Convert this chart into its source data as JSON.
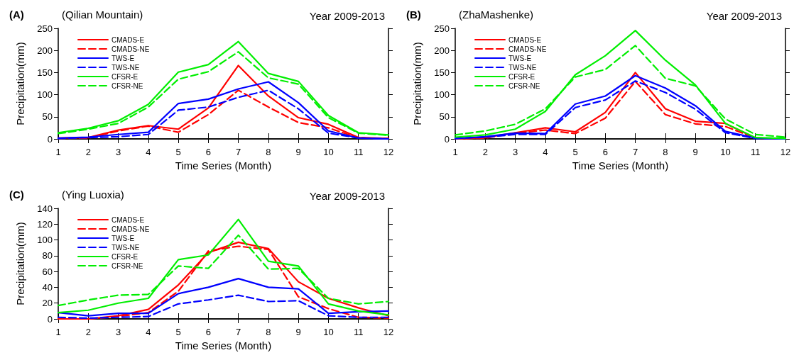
{
  "chart_data": [
    {
      "type": "line",
      "title": "(A)",
      "subtitle": "(Qilian Mountain)",
      "annotations": [
        "Year 2009-2013"
      ],
      "xlabel": "Time Series (Month)",
      "ylabel": "Precipitation(mm)",
      "x": [
        1,
        2,
        3,
        4,
        5,
        6,
        7,
        8,
        9,
        10,
        11,
        12
      ],
      "xlim": [
        1,
        12
      ],
      "xticks": [
        1,
        2,
        3,
        4,
        5,
        6,
        7,
        8,
        9,
        10,
        11,
        12
      ],
      "ylim": [
        0,
        250
      ],
      "yticks": [
        0,
        50,
        100,
        150,
        200,
        250
      ],
      "legend": "top left",
      "grid": false,
      "marker": "none",
      "series": [
        {
          "name": "CMADS-E",
          "color": "#ff0000",
          "line_style": "solid",
          "values": [
            2,
            3,
            20,
            30,
            22,
            70,
            166,
            97,
            48,
            33,
            3,
            1
          ]
        },
        {
          "name": "CMADS-NE",
          "color": "#ff0000",
          "line_style": "dashed",
          "values": [
            1,
            2,
            18,
            29,
            15,
            55,
            110,
            72,
            37,
            25,
            2,
            1
          ]
        },
        {
          "name": "TWS-E",
          "color": "#0000ff",
          "line_style": "solid",
          "values": [
            2,
            4,
            10,
            15,
            80,
            90,
            113,
            129,
            82,
            18,
            2,
            0
          ]
        },
        {
          "name": "TWS-NE",
          "color": "#0000ff",
          "line_style": "dashed",
          "values": [
            1,
            3,
            5,
            10,
            65,
            72,
            94,
            110,
            68,
            13,
            2,
            0
          ]
        },
        {
          "name": "CFSR-E",
          "color": "#00ee00",
          "line_style": "solid",
          "values": [
            14,
            24,
            41,
            78,
            151,
            168,
            220,
            148,
            130,
            53,
            14,
            9
          ]
        },
        {
          "name": "CFSR-NE",
          "color": "#00ee00",
          "line_style": "dashed",
          "values": [
            12,
            22,
            35,
            72,
            135,
            152,
            197,
            138,
            124,
            48,
            13,
            8
          ]
        }
      ]
    },
    {
      "type": "line",
      "title": "(B)",
      "subtitle": "(ZhaMashenke)",
      "annotations": [
        "Year 2009-2013"
      ],
      "xlabel": "Time Series (Month)",
      "ylabel": "Precipitation(mm)",
      "x": [
        1,
        2,
        3,
        4,
        5,
        6,
        7,
        8,
        9,
        10,
        11,
        12
      ],
      "xlim": [
        1,
        12
      ],
      "xticks": [
        1,
        2,
        3,
        4,
        5,
        6,
        7,
        8,
        9,
        10,
        11,
        12
      ],
      "ylim": [
        0,
        250
      ],
      "yticks": [
        0,
        50,
        100,
        150,
        200,
        250
      ],
      "legend": "top left",
      "grid": false,
      "marker": "none",
      "series": [
        {
          "name": "CMADS-E",
          "color": "#ff0000",
          "line_style": "solid",
          "values": [
            0,
            3,
            14,
            25,
            16,
            60,
            150,
            68,
            40,
            35,
            2,
            0
          ]
        },
        {
          "name": "CMADS-NE",
          "color": "#ff0000",
          "line_style": "dashed",
          "values": [
            0,
            2,
            13,
            20,
            12,
            47,
            130,
            55,
            34,
            28,
            2,
            0
          ]
        },
        {
          "name": "TWS-E",
          "color": "#0000ff",
          "line_style": "solid",
          "values": [
            1,
            5,
            13,
            12,
            79,
            97,
            143,
            115,
            75,
            17,
            2,
            0
          ]
        },
        {
          "name": "TWS-NE",
          "color": "#0000ff",
          "line_style": "dashed",
          "values": [
            1,
            4,
            10,
            10,
            71,
            88,
            131,
            105,
            67,
            14,
            1,
            0
          ]
        },
        {
          "name": "CFSR-E",
          "color": "#00ee00",
          "line_style": "solid",
          "values": [
            4,
            9,
            22,
            62,
            145,
            188,
            245,
            178,
            122,
            35,
            3,
            1
          ]
        },
        {
          "name": "CFSR-NE",
          "color": "#00ee00",
          "line_style": "dashed",
          "values": [
            9,
            18,
            33,
            68,
            140,
            157,
            211,
            137,
            120,
            45,
            10,
            4
          ]
        }
      ]
    },
    {
      "type": "line",
      "title": "(C)",
      "subtitle": "(Ying Luoxia)",
      "annotations": [
        "Year 2009-2013"
      ],
      "xlabel": "Time Series (Month)",
      "ylabel": "Precipitation(mm)",
      "x": [
        1,
        2,
        3,
        4,
        5,
        6,
        7,
        8,
        9,
        10,
        11,
        12
      ],
      "xlim": [
        1,
        12
      ],
      "xticks": [
        1,
        2,
        3,
        4,
        5,
        6,
        7,
        8,
        9,
        10,
        11,
        12
      ],
      "ylim": [
        0,
        140
      ],
      "yticks": [
        0,
        20,
        40,
        60,
        80,
        100,
        120,
        140
      ],
      "legend": "top left",
      "grid": false,
      "marker": "none",
      "series": [
        {
          "name": "CMADS-E",
          "color": "#ff0000",
          "line_style": "solid",
          "values": [
            0,
            0,
            4,
            12,
            43,
            84,
            97,
            89,
            47,
            26,
            14,
            4
          ]
        },
        {
          "name": "CMADS-NE",
          "color": "#ff0000",
          "line_style": "dashed",
          "values": [
            0,
            0,
            3,
            8,
            35,
            86,
            92,
            88,
            28,
            13,
            2,
            1
          ]
        },
        {
          "name": "TWS-E",
          "color": "#0000ff",
          "line_style": "solid",
          "values": [
            8,
            4,
            7,
            7,
            32,
            40,
            51,
            40,
            38,
            7,
            9,
            10
          ]
        },
        {
          "name": "TWS-NE",
          "color": "#0000ff",
          "line_style": "dashed",
          "values": [
            2,
            1,
            2,
            3,
            19,
            24,
            30,
            22,
            23,
            4,
            2,
            2
          ]
        },
        {
          "name": "CFSR-E",
          "color": "#00ee00",
          "line_style": "solid",
          "values": [
            8,
            11,
            20,
            26,
            75,
            81,
            126,
            73,
            67,
            19,
            10,
            5
          ]
        },
        {
          "name": "CFSR-NE",
          "color": "#00ee00",
          "line_style": "dashed",
          "values": [
            17,
            24,
            30,
            31,
            67,
            64,
            106,
            63,
            64,
            26,
            19,
            22
          ]
        }
      ]
    }
  ]
}
